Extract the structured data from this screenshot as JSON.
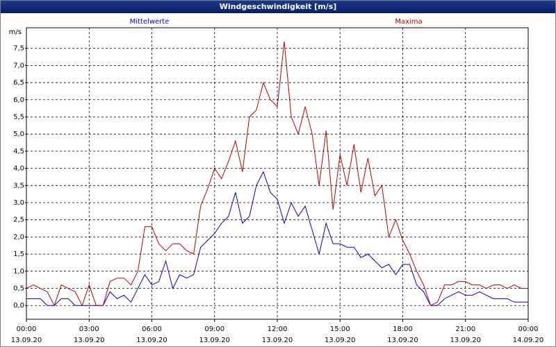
{
  "chart_data": {
    "type": "line",
    "title": "Windgeschwindigkeit [m/s]",
    "y_unit": "m/s",
    "x": [
      0,
      20,
      40,
      60,
      80,
      100,
      120,
      140,
      160,
      180,
      200,
      220,
      240,
      260,
      280,
      300,
      320,
      340,
      360,
      380,
      400,
      420,
      440,
      460,
      480,
      500,
      520,
      540,
      560,
      580,
      600,
      620,
      640,
      660,
      680,
      700,
      720,
      740,
      760,
      780,
      800,
      820,
      840,
      860,
      880,
      900,
      920,
      940,
      960,
      980,
      1000,
      1020,
      1040,
      1060,
      1080,
      1100,
      1120,
      1140,
      1160,
      1180,
      1200,
      1220,
      1240,
      1260,
      1280,
      1300,
      1320,
      1340,
      1360,
      1380,
      1400,
      1420,
      1440
    ],
    "series": [
      {
        "name": "Mittelwerte",
        "color": "#0000c8",
        "values": [
          0.2,
          0.2,
          0.2,
          0.0,
          0.0,
          0.2,
          0.2,
          0.0,
          0.0,
          0.0,
          0.0,
          0.0,
          0.4,
          0.2,
          0.3,
          0.1,
          0.5,
          0.9,
          0.6,
          0.7,
          1.3,
          0.5,
          0.9,
          0.8,
          0.9,
          1.7,
          1.9,
          2.1,
          2.4,
          2.6,
          3.3,
          2.4,
          2.6,
          3.5,
          3.9,
          3.3,
          3.1,
          2.4,
          3.0,
          2.6,
          2.9,
          2.2,
          1.5,
          2.4,
          1.8,
          1.8,
          1.7,
          1.7,
          1.4,
          1.5,
          1.3,
          1.1,
          1.2,
          0.9,
          1.2,
          1.2,
          0.6,
          0.4,
          0.0,
          0.0,
          0.2,
          0.3,
          0.4,
          0.3,
          0.3,
          0.4,
          0.3,
          0.2,
          0.2,
          0.2,
          0.1,
          0.1,
          0.1
        ]
      },
      {
        "name": "Maxima",
        "color": "#b40000",
        "values": [
          0.5,
          0.6,
          0.5,
          0.4,
          0.0,
          0.6,
          0.5,
          0.4,
          0.0,
          0.6,
          0.0,
          0.0,
          0.7,
          0.8,
          0.8,
          0.6,
          1.0,
          2.3,
          2.3,
          1.8,
          1.6,
          1.8,
          1.8,
          1.6,
          1.5,
          2.9,
          3.4,
          4.0,
          3.7,
          4.2,
          4.8,
          3.9,
          5.5,
          5.7,
          6.5,
          6.0,
          5.8,
          7.7,
          5.5,
          5.0,
          5.8,
          5.0,
          3.5,
          5.1,
          2.8,
          4.4,
          3.5,
          4.7,
          3.3,
          4.3,
          3.2,
          3.5,
          2.0,
          2.5,
          1.9,
          1.5,
          1.0,
          0.6,
          0.0,
          0.1,
          0.6,
          0.6,
          0.7,
          0.7,
          0.6,
          0.6,
          0.5,
          0.6,
          0.6,
          0.5,
          0.6,
          0.5,
          0.5
        ]
      }
    ],
    "xlim": [
      0,
      1440
    ],
    "xticks": [
      {
        "value": 0,
        "label": "00:00"
      },
      {
        "value": 180,
        "label": "03:00"
      },
      {
        "value": 360,
        "label": "06:00"
      },
      {
        "value": 540,
        "label": "09:00"
      },
      {
        "value": 720,
        "label": "12:00"
      },
      {
        "value": 900,
        "label": "15:00"
      },
      {
        "value": 1080,
        "label": "18:00"
      },
      {
        "value": 1260,
        "label": "21:00"
      },
      {
        "value": 1440,
        "label": "00:00"
      }
    ],
    "xtick_dates": [
      "13.09.20",
      "13.09.20",
      "13.09.20",
      "13.09.20",
      "13.09.20",
      "13.09.20",
      "13.09.20",
      "13.09.20",
      "14.09.20"
    ],
    "ylim": [
      -0.4,
      8.1
    ],
    "yticks": [
      {
        "value": 0,
        "label": "0,0"
      },
      {
        "value": 0.5,
        "label": "0,5"
      },
      {
        "value": 1,
        "label": "1,0"
      },
      {
        "value": 1.5,
        "label": "1,5"
      },
      {
        "value": 2,
        "label": "2,0"
      },
      {
        "value": 2.5,
        "label": "2,5"
      },
      {
        "value": 3,
        "label": "3,0"
      },
      {
        "value": 3.5,
        "label": "3,5"
      },
      {
        "value": 4,
        "label": "4,0"
      },
      {
        "value": 4.5,
        "label": "4,5"
      },
      {
        "value": 5,
        "label": "5,0"
      },
      {
        "value": 5.5,
        "label": "5,5"
      },
      {
        "value": 6,
        "label": "6,0"
      },
      {
        "value": 6.5,
        "label": "6,5"
      },
      {
        "value": 7,
        "label": "7,0"
      },
      {
        "value": 7.5,
        "label": "7,5"
      }
    ],
    "grid": true
  }
}
